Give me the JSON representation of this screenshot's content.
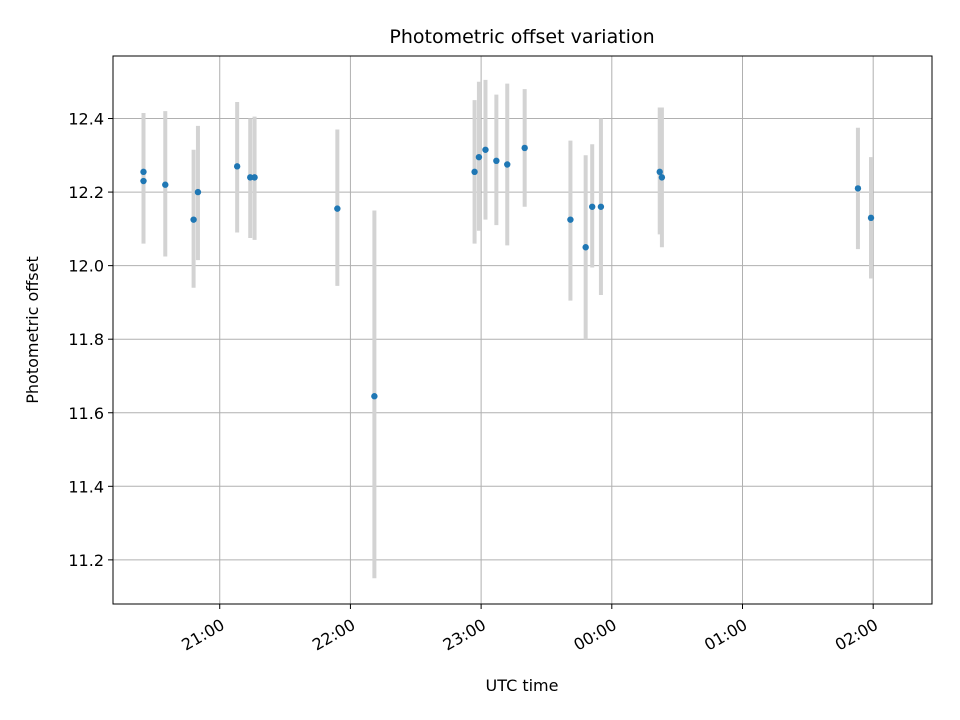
{
  "chart_data": {
    "type": "scatter",
    "title": "Photometric offset variation",
    "xlabel": "UTC time",
    "ylabel": "Photometric offset",
    "ylim": [
      11.08,
      12.57
    ],
    "xlim": [
      "20:11",
      "02:27"
    ],
    "x_tick_labels": [
      "21:00",
      "22:00",
      "23:00",
      "00:00",
      "01:00",
      "02:00"
    ],
    "y_ticks": [
      11.2,
      11.4,
      11.6,
      11.8,
      12.0,
      12.2,
      12.4
    ],
    "y_tick_labels": [
      "11.2",
      "11.4",
      "11.6",
      "11.8",
      "12.0",
      "12.2",
      "12.4"
    ],
    "grid": true,
    "marker_color": "#1f77b4",
    "errorbar_color": "#d3d3d3",
    "series": [
      {
        "points": [
          {
            "x": "20:25",
            "y": 12.255,
            "lo": 12.09,
            "hi": 12.415
          },
          {
            "x": "20:25",
            "y": 12.23,
            "lo": 12.06,
            "hi": 12.4
          },
          {
            "x": "20:35",
            "y": 12.22,
            "lo": 12.025,
            "hi": 12.42
          },
          {
            "x": "20:48",
            "y": 12.125,
            "lo": 11.94,
            "hi": 12.315
          },
          {
            "x": "20:50",
            "y": 12.2,
            "lo": 12.015,
            "hi": 12.38
          },
          {
            "x": "21:08",
            "y": 12.27,
            "lo": 12.09,
            "hi": 12.445
          },
          {
            "x": "21:14",
            "y": 12.24,
            "lo": 12.075,
            "hi": 12.4
          },
          {
            "x": "21:16",
            "y": 12.24,
            "lo": 12.07,
            "hi": 12.405
          },
          {
            "x": "21:54",
            "y": 12.155,
            "lo": 11.945,
            "hi": 12.37
          },
          {
            "x": "22:11",
            "y": 11.645,
            "lo": 11.15,
            "hi": 12.15
          },
          {
            "x": "22:57",
            "y": 12.255,
            "lo": 12.06,
            "hi": 12.45
          },
          {
            "x": "22:59",
            "y": 12.295,
            "lo": 12.095,
            "hi": 12.5
          },
          {
            "x": "23:02",
            "y": 12.315,
            "lo": 12.125,
            "hi": 12.505
          },
          {
            "x": "23:07",
            "y": 12.285,
            "lo": 12.11,
            "hi": 12.465
          },
          {
            "x": "23:12",
            "y": 12.275,
            "lo": 12.055,
            "hi": 12.495
          },
          {
            "x": "23:20",
            "y": 12.32,
            "lo": 12.16,
            "hi": 12.48
          },
          {
            "x": "23:41",
            "y": 12.125,
            "lo": 11.905,
            "hi": 12.34
          },
          {
            "x": "23:48",
            "y": 12.05,
            "lo": 11.8,
            "hi": 12.3
          },
          {
            "x": "23:51",
            "y": 12.16,
            "lo": 11.995,
            "hi": 12.33
          },
          {
            "x": "23:55",
            "y": 12.16,
            "lo": 11.92,
            "hi": 12.4
          },
          {
            "x": "00:22",
            "y": 12.255,
            "lo": 12.085,
            "hi": 12.43
          },
          {
            "x": "00:23",
            "y": 12.24,
            "lo": 12.05,
            "hi": 12.43
          },
          {
            "x": "01:53",
            "y": 12.21,
            "lo": 12.045,
            "hi": 12.375
          },
          {
            "x": "01:59",
            "y": 12.13,
            "lo": 11.965,
            "hi": 12.295
          }
        ]
      }
    ]
  }
}
